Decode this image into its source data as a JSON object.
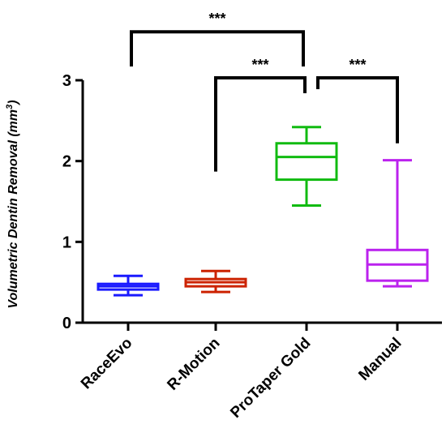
{
  "chart_data": {
    "type": "box",
    "ylabel": "Volumetric Dentin Removal (mm",
    "ylabel_sup": "3",
    "ylabel_close": ")",
    "ylim": [
      0,
      3
    ],
    "yticks": [
      "0",
      "1",
      "2",
      "3"
    ],
    "categories": [
      "RaceEvo",
      "R-Motion",
      "ProTaper Gold",
      "Manual"
    ],
    "boxes": [
      {
        "category": "RaceEvo",
        "min": 0.34,
        "q1": 0.41,
        "median": 0.45,
        "q3": 0.48,
        "max": 0.58,
        "color": "#1a1aff"
      },
      {
        "category": "R-Motion",
        "min": 0.38,
        "q1": 0.45,
        "median": 0.5,
        "q3": 0.54,
        "max": 0.64,
        "color": "#cc2200"
      },
      {
        "category": "ProTaper Gold",
        "min": 1.45,
        "q1": 1.77,
        "median": 2.05,
        "q3": 2.22,
        "max": 2.42,
        "color": "#11bb11"
      },
      {
        "category": "Manual",
        "min": 0.45,
        "q1": 0.52,
        "median": 0.72,
        "q3": 0.9,
        "max": 2.01,
        "color": "#bb22ee"
      }
    ],
    "significance": [
      {
        "from": "RaceEvo",
        "to": "ProTaper Gold",
        "label": "***",
        "level": 3.6,
        "left_drop": 3.17,
        "right_drop": 3.17
      },
      {
        "from": "R-Motion",
        "to": "ProTaper Gold",
        "label": "***",
        "level": 3.03,
        "left_drop": 1.87,
        "right_drop": 2.84
      },
      {
        "from": "ProTaper Gold",
        "to": "Manual",
        "label": "***",
        "level": 3.03,
        "left_drop": 2.89,
        "right_drop": 2.22
      }
    ]
  }
}
